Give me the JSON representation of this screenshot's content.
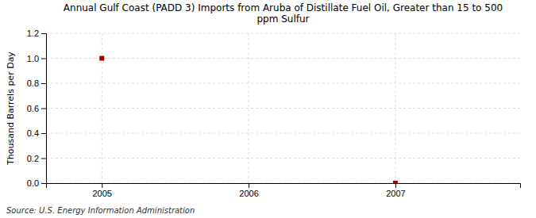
{
  "chart_data": {
    "type": "scatter",
    "title": "Annual Gulf Coast (PADD 3) Imports from Aruba of Distillate Fuel Oil, Greater than 15 to 500\nppm Sulfur",
    "ylabel": "Thousand Barrels per Day",
    "annotation": "Source: U.S. Energy Information Administration",
    "x": [
      2005,
      2007
    ],
    "values": [
      1.0,
      0.0
    ],
    "color": "#aa0000",
    "marker": "square",
    "xlim": [
      2004.62,
      2007.85
    ],
    "ylim": [
      0.0,
      1.2
    ],
    "xticks": [
      2005,
      2006,
      2007
    ],
    "yticks": [
      {
        "value": 0.0,
        "label": "0.0"
      },
      0.2,
      0.4,
      0.6,
      0.8,
      {
        "value": 1.0,
        "label": "1.0"
      },
      1.2
    ],
    "grid": true
  }
}
